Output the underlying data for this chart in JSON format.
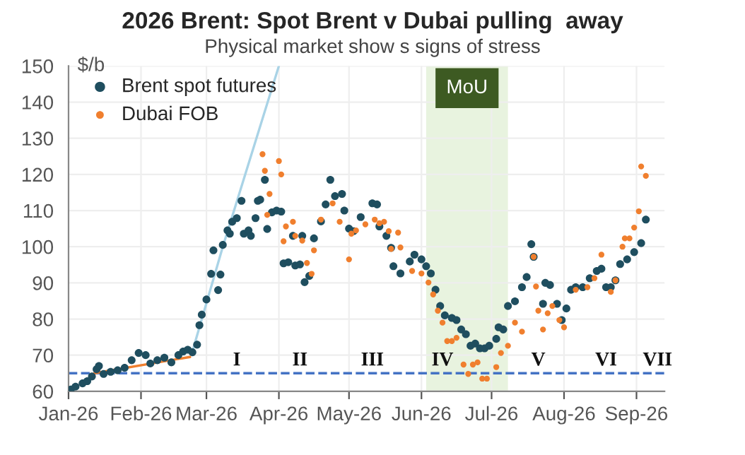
{
  "chart_data": {
    "type": "scatter",
    "title": "2026 Brent: Spot Brent v Dubai pulling  away",
    "subtitle": "Physical market show s signs of stress",
    "ylabel": "$/b",
    "xlim": [
      "2026-01-01",
      "2026-09-13"
    ],
    "xticks": [
      {
        "value": "2026-01-01",
        "label": "Jan-26"
      },
      {
        "value": "2026-02-01",
        "label": "Feb-26"
      },
      {
        "value": "2026-03-01",
        "label": "Mar-26"
      },
      {
        "value": "2026-04-01",
        "label": "Apr-26"
      },
      {
        "value": "2026-05-01",
        "label": "May-26"
      },
      {
        "value": "2026-06-01",
        "label": "Jun-26"
      },
      {
        "value": "2026-07-01",
        "label": "Jul-26"
      },
      {
        "value": "2026-08-01",
        "label": "Aug-26"
      },
      {
        "value": "2026-09-01",
        "label": "Sep-26"
      }
    ],
    "ylim": [
      60,
      150
    ],
    "yticks": [
      60,
      70,
      80,
      90,
      100,
      110,
      120,
      130,
      140,
      150
    ],
    "grid": true,
    "legend": "top left",
    "series": [
      {
        "type": "line",
        "marker": "none",
        "color": "#a9d3e6",
        "x": [
          "2026-02-23",
          "2026-03-08",
          "2026-04-01"
        ],
        "values": [
          71,
          100,
          150
        ]
      },
      {
        "type": "line",
        "marker": "none",
        "color": "#f07f2e",
        "x": [
          "2026-01-12",
          "2026-02-22"
        ],
        "values": [
          65,
          69.5
        ]
      },
      {
        "name": "Brent spot futures",
        "marker": "circle",
        "color": "#1f4e5f",
        "x": [
          "2026-01-02",
          "2026-01-04",
          "2026-01-07",
          "2026-01-09",
          "2026-01-11",
          "2026-01-13",
          "2026-01-14",
          "2026-01-16",
          "2026-01-19",
          "2026-01-22",
          "2026-01-25",
          "2026-01-28",
          "2026-01-31",
          "2026-02-03",
          "2026-02-05",
          "2026-02-08",
          "2026-02-11",
          "2026-02-14",
          "2026-02-17",
          "2026-02-19",
          "2026-02-21",
          "2026-02-23",
          "2026-02-25",
          "2026-02-26",
          "2026-02-27",
          "2026-03-01",
          "2026-03-03",
          "2026-03-04",
          "2026-03-06",
          "2026-03-07",
          "2026-03-08",
          "2026-03-10",
          "2026-03-11",
          "2026-03-12",
          "2026-03-14",
          "2026-03-16",
          "2026-03-17",
          "2026-03-19",
          "2026-03-20",
          "2026-03-22",
          "2026-03-23",
          "2026-03-24",
          "2026-03-26",
          "2026-03-27",
          "2026-03-29",
          "2026-03-31",
          "2026-04-02",
          "2026-04-03",
          "2026-04-05",
          "2026-04-07",
          "2026-04-08",
          "2026-04-10",
          "2026-04-11",
          "2026-04-12",
          "2026-04-14",
          "2026-04-16",
          "2026-04-19",
          "2026-04-21",
          "2026-04-23",
          "2026-04-25",
          "2026-04-28",
          "2026-04-29",
          "2026-05-01",
          "2026-05-03",
          "2026-05-06",
          "2026-05-11",
          "2026-05-13",
          "2026-05-14",
          "2026-05-17",
          "2026-05-19",
          "2026-05-20",
          "2026-05-23",
          "2026-05-27",
          "2026-05-29",
          "2026-06-01",
          "2026-06-03",
          "2026-06-05",
          "2026-06-07",
          "2026-06-09",
          "2026-06-11",
          "2026-06-14",
          "2026-06-16",
          "2026-06-18",
          "2026-06-20",
          "2026-06-22",
          "2026-06-24",
          "2026-06-26",
          "2026-06-28",
          "2026-06-30",
          "2026-07-03",
          "2026-07-04",
          "2026-07-06",
          "2026-07-08",
          "2026-07-11",
          "2026-07-14",
          "2026-07-16",
          "2026-07-18",
          "2026-07-19",
          "2026-07-23",
          "2026-07-24",
          "2026-07-26",
          "2026-07-29",
          "2026-07-31",
          "2026-08-02",
          "2026-08-04",
          "2026-08-06",
          "2026-08-09",
          "2026-08-12",
          "2026-08-15",
          "2026-08-17",
          "2026-08-19",
          "2026-08-21",
          "2026-08-23",
          "2026-08-25",
          "2026-08-28",
          "2026-08-31",
          "2026-09-03",
          "2026-09-05"
        ],
        "values": [
          60.5,
          61.3,
          62.2,
          62.8,
          64.1,
          66.1,
          67,
          64.8,
          65.4,
          65.8,
          66.5,
          68.6,
          70.6,
          70,
          67.7,
          68.6,
          69.3,
          68,
          70,
          71,
          71.5,
          70.8,
          72.9,
          78.3,
          81.2,
          85.4,
          92.5,
          99,
          88,
          92.3,
          100.5,
          104.5,
          103.6,
          106.9,
          107.9,
          112.7,
          103.6,
          104.5,
          103,
          107.9,
          112.7,
          113,
          118.5,
          104.9,
          109.5,
          110,
          109.7,
          95.4,
          95.7,
          103,
          94.8,
          95.1,
          103,
          90.2,
          91.9,
          102.3,
          107,
          111.7,
          118.5,
          114,
          114.6,
          110,
          105,
          104.3,
          108.2,
          112,
          111.7,
          105.6,
          103,
          99.7,
          94.6,
          92.6,
          95.9,
          97.8,
          96.5,
          94.6,
          92.6,
          88.1,
          83.6,
          81,
          80.3,
          79.7,
          77.1,
          75.8,
          72.6,
          73.2,
          71.9,
          71.9,
          72.6,
          74.5,
          77.7,
          77.1,
          83.6,
          84.9,
          88.8,
          91.6,
          100.7,
          97.2,
          84.2,
          90,
          89.4,
          84.2,
          79.7,
          82.9,
          88.1,
          88.8,
          88.8,
          91.3,
          93.3,
          93.9,
          88.8,
          88.8,
          90.7,
          95.2,
          96.5,
          98.5,
          101,
          107.5
        ]
      },
      {
        "name": "Dubai FOB",
        "marker": "circle",
        "color": "#f07f2e",
        "x": [
          "2026-03-25",
          "2026-03-26",
          "2026-03-27",
          "2026-03-28",
          "2026-04-01",
          "2026-04-02",
          "2026-04-03",
          "2026-04-04",
          "2026-04-07",
          "2026-04-08",
          "2026-04-11",
          "2026-04-13",
          "2026-04-15",
          "2026-04-16",
          "2026-04-19",
          "2026-04-24",
          "2026-04-27",
          "2026-05-01",
          "2026-05-02",
          "2026-05-04",
          "2026-05-08",
          "2026-05-12",
          "2026-05-14",
          "2026-05-16",
          "2026-05-18",
          "2026-05-19",
          "2026-05-22",
          "2026-05-23",
          "2026-05-28",
          "2026-06-01",
          "2026-06-04",
          "2026-06-06",
          "2026-06-08",
          "2026-06-10",
          "2026-06-12",
          "2026-06-14",
          "2026-06-16",
          "2026-06-19",
          "2026-06-21",
          "2026-06-23",
          "2026-06-25",
          "2026-06-27",
          "2026-06-29",
          "2026-07-03",
          "2026-07-05",
          "2026-07-08",
          "2026-07-11",
          "2026-07-14",
          "2026-07-19",
          "2026-07-20",
          "2026-07-21",
          "2026-07-23",
          "2026-07-25",
          "2026-07-27",
          "2026-07-30",
          "2026-08-01",
          "2026-08-06",
          "2026-08-11",
          "2026-08-14",
          "2026-08-17",
          "2026-08-21",
          "2026-08-23",
          "2026-08-26",
          "2026-08-27",
          "2026-08-29",
          "2026-08-31",
          "2026-09-02",
          "2026-09-03",
          "2026-09-05"
        ],
        "values": [
          125.6,
          121,
          108.8,
          114.6,
          123.7,
          120,
          101.5,
          105.6,
          106.9,
          103,
          101.7,
          95.5,
          92.5,
          99,
          107.5,
          112,
          106.9,
          96.5,
          103.6,
          104.5,
          106.2,
          107.5,
          106.5,
          106.9,
          104.3,
          99.4,
          103.9,
          99.8,
          93.3,
          92.6,
          90.1,
          86.8,
          82.3,
          79,
          73.9,
          73.9,
          74.8,
          67.4,
          64.8,
          67.4,
          68,
          63.5,
          63.5,
          66.7,
          70.6,
          72.6,
          79,
          76.5,
          97.2,
          89,
          82.3,
          77.1,
          81.6,
          83.6,
          79.7,
          77.7,
          88.1,
          88.8,
          91.3,
          97.8,
          87.5,
          90.7,
          100,
          102.3,
          102.3,
          105.3,
          109.8,
          122.2,
          119.6
        ]
      }
    ],
    "ref_lines": [
      {
        "axis": "y",
        "value": 65,
        "color": "#4472c4",
        "line_style": "dashed"
      }
    ],
    "bands": [
      {
        "axis": "x",
        "from": "2026-06-03",
        "to": "2026-07-08",
        "label": "MoU",
        "color": "#e8f3df"
      }
    ],
    "annotations": [
      {
        "text": "I",
        "x": "2026-03-14",
        "y": 66
      },
      {
        "text": "II",
        "x": "2026-04-10",
        "y": 66
      },
      {
        "text": "III",
        "x": "2026-05-11",
        "y": 66
      },
      {
        "text": "IV",
        "x": "2026-06-10",
        "y": 66
      },
      {
        "text": "V",
        "x": "2026-07-21",
        "y": 66
      },
      {
        "text": "VI",
        "x": "2026-08-19",
        "y": 66
      },
      {
        "text": "VII",
        "x": "2026-09-10",
        "y": 66
      }
    ]
  }
}
